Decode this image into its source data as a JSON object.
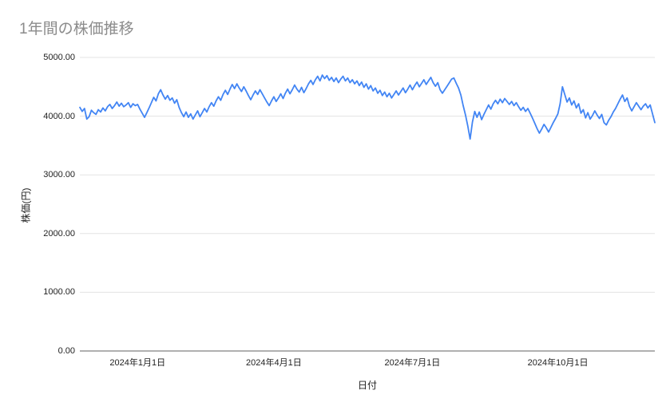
{
  "chart_data": {
    "type": "line",
    "title": "1年間の株価推移",
    "xlabel": "日付",
    "ylabel": "株価(円)",
    "ylim": [
      0,
      5000
    ],
    "grid": true,
    "legend": "none",
    "colors": {
      "line": "#4285f4",
      "grid": "#e3e3e3",
      "axis_line": "#616161",
      "title_text": "#8b8b8b",
      "tick_text": "#212121"
    },
    "y_ticks": [
      {
        "value": 0,
        "label": "0.00"
      },
      {
        "value": 1000,
        "label": "1000.00"
      },
      {
        "value": 2000,
        "label": "2000.00"
      },
      {
        "value": 3000,
        "label": "3000.00"
      },
      {
        "value": 4000,
        "label": "4000.00"
      },
      {
        "value": 5000,
        "label": "5000.00"
      }
    ],
    "x_ticks": [
      {
        "index": 25,
        "label": "2024年1月1日"
      },
      {
        "index": 84,
        "label": "2024年4月1日"
      },
      {
        "index": 144,
        "label": "2024年7月1日"
      },
      {
        "index": 207,
        "label": "2024年10月1日"
      }
    ],
    "series": [
      {
        "name": "株価",
        "color": "#4285f4",
        "values": [
          4150,
          4080,
          4130,
          3950,
          3990,
          4100,
          4060,
          4030,
          4110,
          4070,
          4140,
          4090,
          4160,
          4200,
          4130,
          4180,
          4240,
          4170,
          4220,
          4160,
          4190,
          4230,
          4150,
          4210,
          4180,
          4200,
          4120,
          4050,
          3980,
          4060,
          4140,
          4230,
          4320,
          4260,
          4380,
          4450,
          4360,
          4290,
          4350,
          4270,
          4310,
          4220,
          4280,
          4150,
          4060,
          3990,
          4070,
          3980,
          4040,
          3950,
          4020,
          4090,
          3990,
          4060,
          4130,
          4070,
          4160,
          4230,
          4170,
          4260,
          4330,
          4270,
          4370,
          4440,
          4370,
          4460,
          4540,
          4470,
          4550,
          4480,
          4420,
          4500,
          4430,
          4350,
          4280,
          4360,
          4430,
          4370,
          4450,
          4380,
          4310,
          4240,
          4180,
          4260,
          4330,
          4250,
          4310,
          4380,
          4300,
          4390,
          4460,
          4380,
          4450,
          4530,
          4460,
          4410,
          4490,
          4400,
          4470,
          4550,
          4610,
          4540,
          4620,
          4680,
          4600,
          4700,
          4640,
          4690,
          4610,
          4660,
          4590,
          4650,
          4570,
          4630,
          4680,
          4600,
          4650,
          4570,
          4620,
          4550,
          4600,
          4520,
          4580,
          4490,
          4550,
          4460,
          4520,
          4430,
          4480,
          4390,
          4440,
          4350,
          4410,
          4330,
          4390,
          4310,
          4370,
          4430,
          4360,
          4420,
          4480,
          4400,
          4460,
          4530,
          4450,
          4520,
          4580,
          4500,
          4560,
          4620,
          4540,
          4600,
          4660,
          4570,
          4510,
          4570,
          4450,
          4390,
          4450,
          4510,
          4570,
          4630,
          4650,
          4560,
          4480,
          4360,
          4180,
          4020,
          3830,
          3610,
          3900,
          4080,
          3980,
          4070,
          3940,
          4030,
          4110,
          4190,
          4120,
          4210,
          4270,
          4210,
          4290,
          4230,
          4300,
          4250,
          4200,
          4250,
          4180,
          4230,
          4160,
          4100,
          4150,
          4080,
          4130,
          4050,
          3970,
          3880,
          3790,
          3710,
          3780,
          3860,
          3800,
          3730,
          3810,
          3890,
          3960,
          4040,
          4210,
          4500,
          4370,
          4240,
          4310,
          4190,
          4260,
          4140,
          4210,
          4050,
          4110,
          3970,
          4060,
          3950,
          4010,
          4090,
          4020,
          3960,
          4030,
          3890,
          3850,
          3930,
          3990,
          4070,
          4130,
          4210,
          4290,
          4360,
          4250,
          4310,
          4170,
          4090,
          4160,
          4230,
          4170,
          4110,
          4170,
          4210,
          4140,
          4190,
          4040,
          3890
        ]
      }
    ]
  }
}
